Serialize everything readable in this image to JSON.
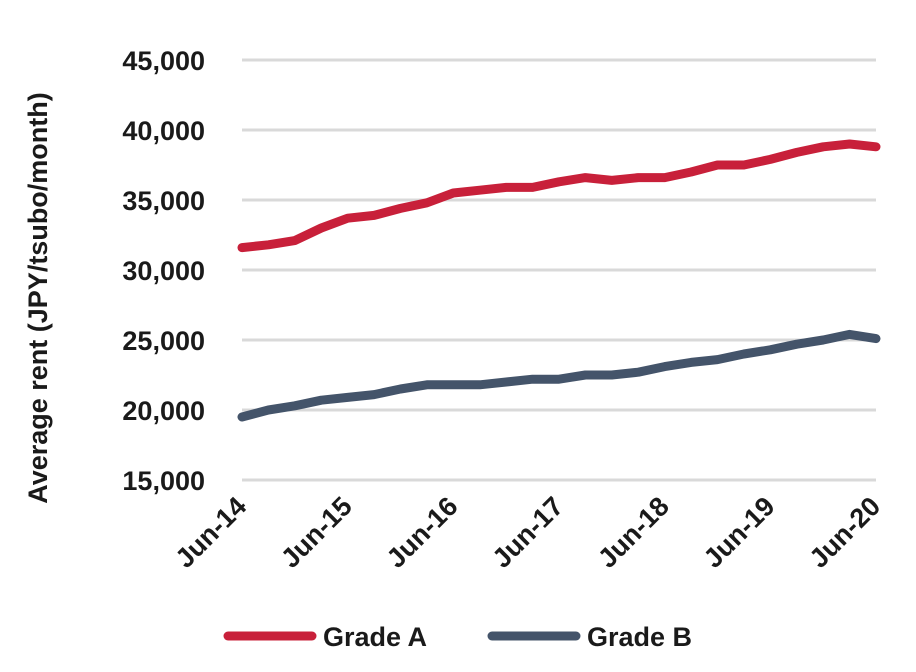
{
  "chart_data": {
    "type": "line",
    "ylabel": "Average rent (JPY/tsubo/month)",
    "ylim": [
      15000,
      45000
    ],
    "yticks": [
      15000,
      20000,
      25000,
      30000,
      35000,
      40000,
      45000
    ],
    "y_tick_labels": [
      "15,000",
      "20,000",
      "25,000",
      "30,000",
      "35,000",
      "40,000",
      "45,000"
    ],
    "x_tick_labels": [
      "Jun-14",
      "Jun-15",
      "Jun-16",
      "Jun-17",
      "Jun-18",
      "Jun-19",
      "Jun-20"
    ],
    "x": [
      "Jun-14",
      "Sep-14",
      "Dec-14",
      "Mar-15",
      "Jun-15",
      "Sep-15",
      "Dec-15",
      "Mar-16",
      "Jun-16",
      "Sep-16",
      "Dec-16",
      "Mar-17",
      "Jun-17",
      "Sep-17",
      "Dec-17",
      "Mar-18",
      "Jun-18",
      "Sep-18",
      "Dec-18",
      "Mar-19",
      "Jun-19",
      "Sep-19",
      "Dec-19",
      "Mar-20",
      "Jun-20"
    ],
    "grid": true,
    "legend": "bottom",
    "series": [
      {
        "name": "Grade A",
        "color": "#c8203a",
        "values": [
          31600,
          31800,
          32100,
          33000,
          33700,
          33900,
          34400,
          34800,
          35500,
          35700,
          35900,
          35900,
          36300,
          36600,
          36400,
          36600,
          36600,
          37000,
          37500,
          37500,
          37900,
          38400,
          38800,
          39000,
          38800
        ]
      },
      {
        "name": "Grade B",
        "color": "#44546a",
        "values": [
          19500,
          20000,
          20300,
          20700,
          20900,
          21100,
          21500,
          21800,
          21800,
          21800,
          22000,
          22200,
          22200,
          22500,
          22500,
          22700,
          23100,
          23400,
          23600,
          24000,
          24300,
          24700,
          25000,
          25400,
          25100
        ]
      }
    ]
  }
}
